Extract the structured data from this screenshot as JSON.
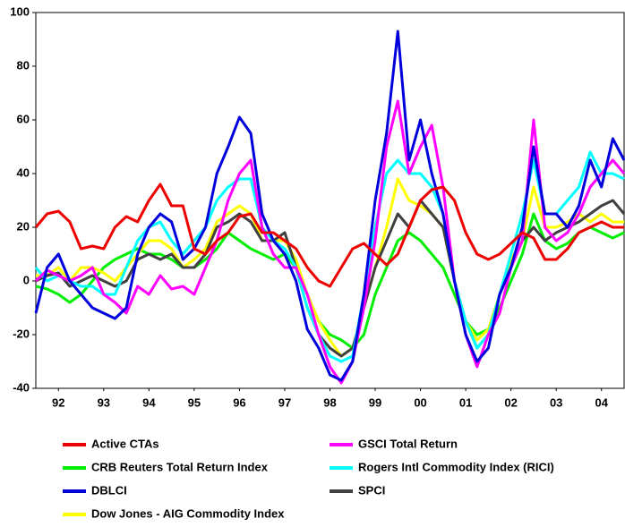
{
  "chart_data": {
    "type": "line",
    "x": [
      1992,
      1992.25,
      1992.5,
      1992.75,
      1993,
      1993.25,
      1993.5,
      1993.75,
      1994,
      1994.25,
      1994.5,
      1994.75,
      1995,
      1995.25,
      1995.5,
      1995.75,
      1996,
      1996.25,
      1996.5,
      1996.75,
      1997,
      1997.25,
      1997.5,
      1997.75,
      1998,
      1998.25,
      1998.5,
      1998.75,
      1999,
      1999.25,
      1999.5,
      1999.75,
      2000,
      2000.25,
      2000.5,
      2000.75,
      2001,
      2001.25,
      2001.5,
      2001.75,
      2002,
      2002.25,
      2002.5,
      2002.75,
      2003,
      2003.25,
      2003.5,
      2003.75,
      2004,
      2004.25,
      2004.5,
      2004.75,
      2005
    ],
    "xlim": [
      1992,
      2005
    ],
    "xticks": [
      {
        "value": 1992.5,
        "label": "92"
      },
      {
        "value": 1993.5,
        "label": "93"
      },
      {
        "value": 1994.5,
        "label": "94"
      },
      {
        "value": 1995.5,
        "label": "95"
      },
      {
        "value": 1996.5,
        "label": "96"
      },
      {
        "value": 1997.5,
        "label": "97"
      },
      {
        "value": 1998.5,
        "label": "98"
      },
      {
        "value": 1999.5,
        "label": "99"
      },
      {
        "value": 2000.5,
        "label": "00"
      },
      {
        "value": 2001.5,
        "label": "01"
      },
      {
        "value": 2002.5,
        "label": "02"
      },
      {
        "value": 2003.5,
        "label": "03"
      },
      {
        "value": 2004.5,
        "label": "04"
      }
    ],
    "ylim": [
      -40,
      100
    ],
    "yticks": [
      -40,
      -20,
      0,
      20,
      40,
      60,
      80,
      100
    ],
    "grid": false,
    "series": [
      {
        "name": "CRB Reuters Total Return Index",
        "color": "#00ee00",
        "values": [
          -2,
          -3,
          -5,
          -8,
          -5,
          0,
          5,
          8,
          10,
          12,
          10,
          10,
          8,
          5,
          5,
          8,
          12,
          18,
          15,
          12,
          10,
          8,
          10,
          5,
          -5,
          -15,
          -20,
          -22,
          -25,
          -20,
          -5,
          5,
          15,
          18,
          15,
          10,
          5,
          -5,
          -15,
          -20,
          -18,
          -10,
          0,
          10,
          25,
          15,
          12,
          14,
          18,
          20,
          18,
          16,
          18
        ]
      },
      {
        "name": "Dow Jones - AIG  Commodity Index",
        "color": "#ffff00",
        "values": [
          2,
          2,
          5,
          0,
          5,
          5,
          3,
          0,
          5,
          10,
          15,
          15,
          12,
          5,
          8,
          12,
          22,
          25,
          28,
          25,
          15,
          15,
          15,
          8,
          -5,
          -15,
          -22,
          -28,
          -25,
          -10,
          5,
          20,
          38,
          30,
          28,
          25,
          20,
          0,
          -15,
          -22,
          -18,
          -5,
          8,
          15,
          35,
          20,
          20,
          22,
          25,
          22,
          25,
          22,
          22
        ]
      },
      {
        "name": "SPCI",
        "color": "#404040",
        "values": [
          0,
          2,
          3,
          -2,
          0,
          2,
          0,
          -2,
          0,
          8,
          10,
          8,
          10,
          5,
          5,
          10,
          20,
          22,
          25,
          22,
          15,
          15,
          18,
          5,
          -10,
          -20,
          -25,
          -28,
          -25,
          -10,
          5,
          15,
          25,
          20,
          30,
          25,
          20,
          0,
          -15,
          -25,
          -20,
          -5,
          5,
          15,
          20,
          15,
          18,
          20,
          22,
          25,
          28,
          30,
          25
        ]
      },
      {
        "name": "Rogers Intl Commodity Index (RICI)",
        "color": "#00ffff",
        "values": [
          5,
          0,
          2,
          0,
          -2,
          -2,
          -5,
          -5,
          5,
          15,
          20,
          22,
          15,
          10,
          15,
          20,
          30,
          35,
          38,
          38,
          20,
          15,
          12,
          5,
          -10,
          -20,
          -28,
          -30,
          -28,
          -5,
          20,
          40,
          45,
          40,
          40,
          35,
          25,
          0,
          -15,
          -25,
          -20,
          -5,
          10,
          25,
          45,
          25,
          25,
          30,
          35,
          48,
          40,
          40,
          38
        ]
      },
      {
        "name": "GSCI Total Return",
        "color": "#ff00ff",
        "values": [
          0,
          4,
          2,
          0,
          2,
          5,
          -5,
          -8,
          -12,
          -2,
          -5,
          2,
          -3,
          -2,
          -5,
          5,
          15,
          30,
          40,
          45,
          20,
          10,
          5,
          5,
          -5,
          -20,
          -32,
          -38,
          -30,
          -10,
          15,
          50,
          67,
          40,
          50,
          58,
          35,
          0,
          -20,
          -32,
          -20,
          -12,
          5,
          15,
          60,
          20,
          15,
          18,
          25,
          35,
          40,
          45,
          40
        ]
      },
      {
        "name": "DBLCI",
        "color": "#0000dd",
        "values": [
          -12,
          5,
          10,
          0,
          -5,
          -10,
          -12,
          -14,
          -10,
          10,
          20,
          25,
          22,
          8,
          12,
          20,
          40,
          50,
          61,
          55,
          25,
          15,
          10,
          0,
          -18,
          -25,
          -35,
          -37,
          -30,
          -5,
          30,
          55,
          93,
          45,
          60,
          40,
          25,
          0,
          -20,
          -30,
          -25,
          -5,
          5,
          20,
          50,
          25,
          25,
          20,
          28,
          45,
          35,
          53,
          45
        ]
      },
      {
        "name": "Active CTAs",
        "color": "#ee0000",
        "values": [
          20,
          25,
          26,
          22,
          12,
          13,
          12,
          20,
          24,
          22,
          30,
          36,
          28,
          28,
          12,
          10,
          15,
          18,
          24,
          25,
          18,
          18,
          15,
          12,
          5,
          0,
          -2,
          5,
          12,
          14,
          10,
          6,
          10,
          20,
          30,
          34,
          35,
          30,
          18,
          10,
          8,
          10,
          14,
          18,
          16,
          8,
          8,
          12,
          18,
          20,
          22,
          20,
          20
        ]
      }
    ],
    "legend_order": [
      6,
      4,
      0,
      3,
      5,
      2,
      1
    ]
  }
}
